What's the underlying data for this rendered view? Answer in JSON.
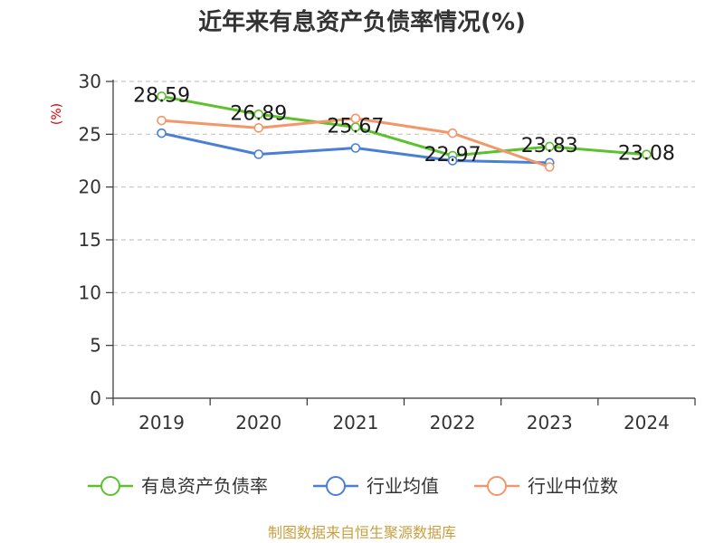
{
  "source_note": "制图数据来自恒生聚源数据库",
  "colors": {
    "axis": "#333333",
    "grid": "#c8c8c8",
    "ylabel": "#d40000",
    "source_note": "#c9a040"
  },
  "chart_data": {
    "type": "line",
    "title": "近年来有息资产负债率情况(%)",
    "xlabel": "",
    "ylabel": "(%)",
    "categories": [
      "2019",
      "2020",
      "2021",
      "2022",
      "2023",
      "2024"
    ],
    "ylim": [
      0,
      30
    ],
    "yticks": [
      0,
      5,
      10,
      15,
      20,
      25,
      30
    ],
    "grid": true,
    "legend": "bottom",
    "series": [
      {
        "name": "有息资产负债率",
        "color": "#5cc12d",
        "show_labels": true,
        "values": [
          28.59,
          26.89,
          25.67,
          22.97,
          23.83,
          23.08
        ]
      },
      {
        "name": "行业均值",
        "color": "#4b7fd6",
        "show_labels": false,
        "values": [
          25.1,
          23.1,
          23.7,
          22.5,
          22.3,
          null
        ]
      },
      {
        "name": "行业中位数",
        "color": "#f3976b",
        "show_labels": false,
        "values": [
          26.3,
          25.6,
          26.5,
          25.1,
          21.9,
          null
        ]
      }
    ]
  }
}
